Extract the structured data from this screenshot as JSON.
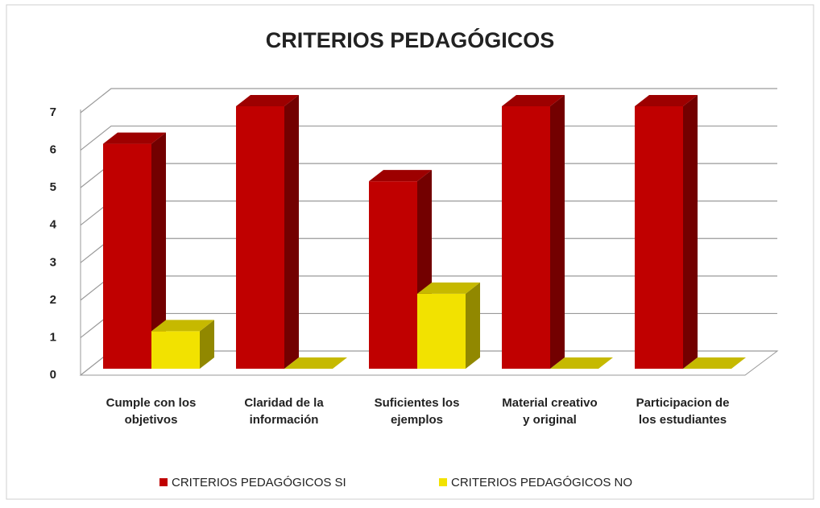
{
  "chart_data": {
    "type": "bar3d",
    "title": "CRITERIOS PEDAGÓGICOS",
    "categories": [
      "Cumple con los objetivos",
      "Claridad de la información",
      "Suficientes los ejemplos",
      "Material creativo y original",
      "Participacion de los estudiantes"
    ],
    "series": [
      {
        "name": "CRITERIOS PEDAGÓGICOS SI",
        "color": "#c00000",
        "values": [
          6,
          7,
          5,
          7,
          7
        ]
      },
      {
        "name": "CRITERIOS PEDAGÓGICOS NO",
        "color": "#f2e200",
        "values": [
          1,
          0,
          2,
          0,
          0
        ]
      }
    ],
    "ylim": [
      0,
      7
    ],
    "yticks": [
      0,
      1,
      2,
      3,
      4,
      5,
      6,
      7
    ],
    "grid": true,
    "legend": "bottom"
  }
}
